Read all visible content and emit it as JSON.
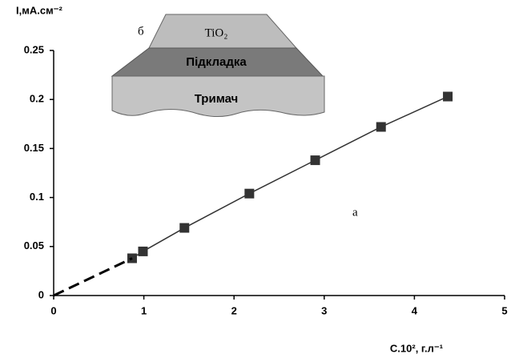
{
  "chart_data": {
    "type": "scatter",
    "x_label": "C.10², г.л⁻¹",
    "y_label": "I,мА.см⁻²",
    "annotations": [
      "а",
      "б"
    ],
    "inset": {
      "layers": [
        "TiO₂",
        "Підкладка",
        "Тримач"
      ]
    },
    "xlim": [
      0,
      5
    ],
    "xticks": [
      0,
      1,
      2,
      3,
      4,
      5
    ],
    "ylim": [
      0,
      0.25
    ],
    "yticks": [
      0,
      0.05,
      0.1,
      0.15,
      0.2,
      0.25
    ],
    "grid": false,
    "series": [
      {
        "color": "#333333",
        "x": [
          0.87,
          0.99,
          1.45,
          2.17,
          2.9,
          3.63,
          4.37
        ],
        "values": [
          0.038,
          0.045,
          0.069,
          0.104,
          0.138,
          0.172,
          0.203
        ],
        "markers": true,
        "dashed": false
      },
      {
        "color": "#000000",
        "x": [
          0,
          0.87
        ],
        "values": [
          0,
          0.038
        ],
        "markers": false,
        "dashed": true
      }
    ]
  }
}
